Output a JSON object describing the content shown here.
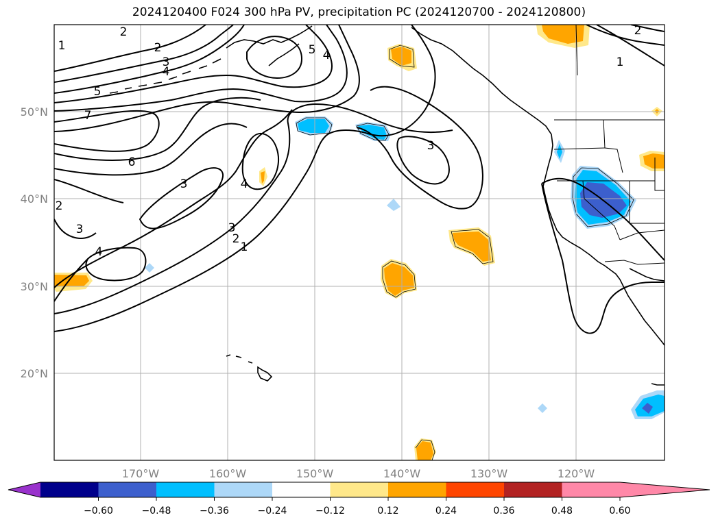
{
  "title": "2024120400 F024 300 hPa PV, precipitation PC (2024120700 - 2024120800)",
  "lat_labels": [
    "50°N",
    "40°N",
    "30°N",
    "20°N"
  ],
  "lon_labels": [
    "170°W",
    "160°W",
    "150°W",
    "140°W",
    "130°W",
    "120°W"
  ],
  "contour_labels": [
    "2",
    "2",
    "3",
    "4",
    "5",
    "7",
    "6",
    "3",
    "4",
    "3",
    "2",
    "1",
    "5",
    "4",
    "3",
    "4",
    "1",
    "2",
    "2",
    "3",
    "1"
  ],
  "colorbar": {
    "ticks": [
      "−0.60",
      "−0.48",
      "−0.36",
      "−0.24",
      "−0.12",
      "0.12",
      "0.24",
      "0.36",
      "0.48",
      "0.60"
    ],
    "colors": [
      "#9932cc",
      "#00008b",
      "#3c5fcd",
      "#00bfff",
      "#add8f8",
      "#ffffff",
      "#ffe88a",
      "#ffa500",
      "#ff4500",
      "#b22222",
      "#ff88a8"
    ]
  }
}
